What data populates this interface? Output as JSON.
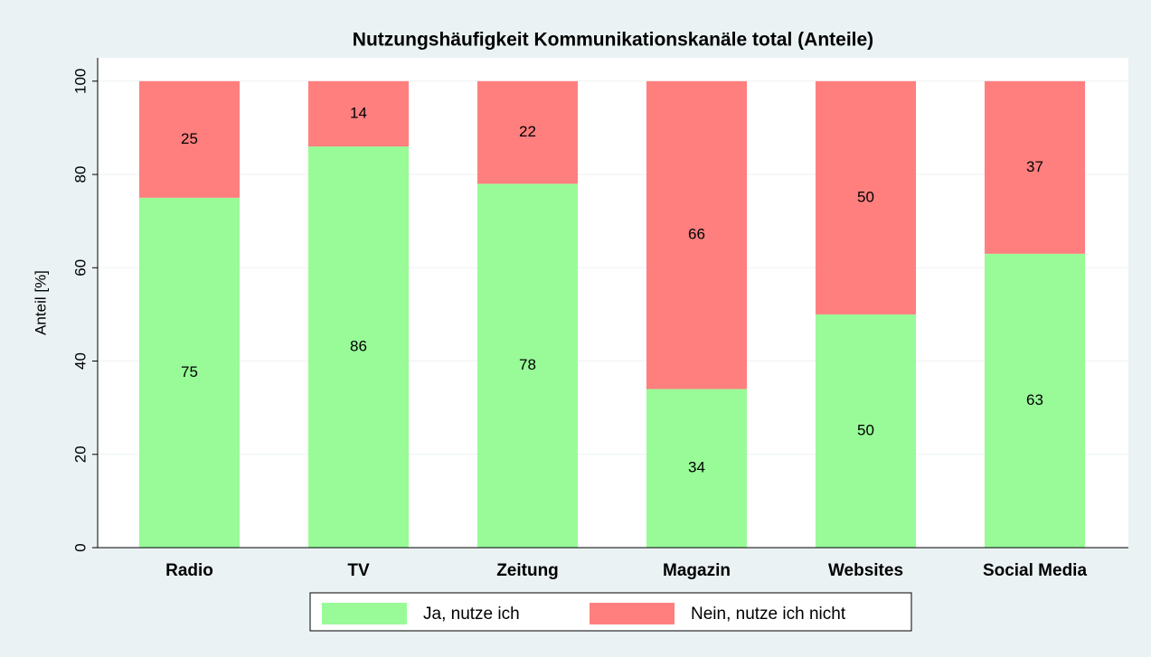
{
  "chart_data": {
    "type": "stacked_bar",
    "title": "Nutzungshäufigkeit Kommunikationskanäle total (Anteile)",
    "y_label": "Anteil [%]",
    "categories": [
      "Radio",
      "TV",
      "Zeitung",
      "Magazin",
      "Websites",
      "Social Media"
    ],
    "series": [
      {
        "name": "Ja, nutze ich",
        "color": "#98fb98",
        "values": [
          75,
          86,
          78,
          34,
          50,
          63
        ]
      },
      {
        "name": "Nein, nutze ich nicht",
        "color": "#ff7f7f",
        "values": [
          25,
          14,
          22,
          66,
          50,
          37
        ]
      }
    ],
    "ylim": [
      0,
      105
    ],
    "yticks": [
      0,
      20,
      40,
      60,
      80,
      100
    ],
    "grid": true,
    "legend": "bottom"
  }
}
